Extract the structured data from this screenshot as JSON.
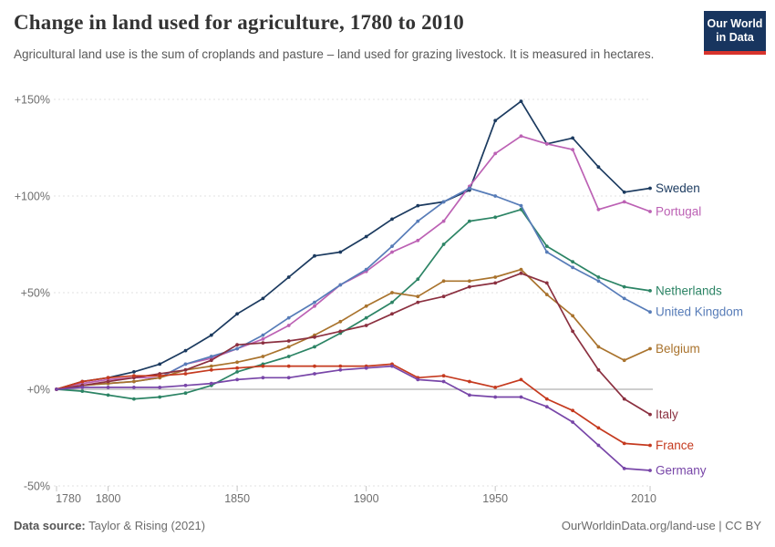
{
  "header": {
    "title": "Change in land used for agriculture, 1780 to 2010",
    "subtitle": "Agricultural land use is the sum of croplands and pasture – land used for grazing livestock. It is measured in hectares.",
    "logo": {
      "line1": "Our World",
      "line2": "in Data",
      "bg_color": "#18355F",
      "bar_color": "#D7332C"
    }
  },
  "chart_data": {
    "type": "line",
    "title": "Change in land used for agriculture, 1780 to 2010",
    "xlabel": "",
    "ylabel": "",
    "xlim": [
      1780,
      2010
    ],
    "ylim": [
      -50,
      150
    ],
    "grid": "horizontal-dashed",
    "legend_position": "line-end-labels-right",
    "x": [
      1780,
      1790,
      1800,
      1810,
      1820,
      1830,
      1840,
      1850,
      1860,
      1870,
      1880,
      1890,
      1900,
      1910,
      1920,
      1930,
      1940,
      1950,
      1960,
      1970,
      1980,
      1990,
      2000,
      2010
    ],
    "x_ticks": [
      1780,
      1800,
      1850,
      1900,
      1950,
      2010
    ],
    "y_ticks": [
      {
        "value": 150,
        "label": "+150%"
      },
      {
        "value": 100,
        "label": "+100%"
      },
      {
        "value": 50,
        "label": "+50%"
      },
      {
        "value": 0,
        "label": "+0%"
      },
      {
        "value": -50,
        "label": "-50%"
      }
    ],
    "unit": "%",
    "series": [
      {
        "name": "Sweden",
        "color": "#1B3A5F",
        "values": [
          0,
          4,
          6,
          9,
          13,
          20,
          28,
          39,
          47,
          58,
          69,
          71,
          79,
          88,
          95,
          97,
          103,
          139,
          149,
          127,
          130,
          115,
          102,
          104
        ]
      },
      {
        "name": "Portugal",
        "color": "#BC61B4",
        "values": [
          0,
          3,
          5,
          6,
          6,
          13,
          16,
          21,
          26,
          33,
          43,
          54,
          61,
          71,
          77,
          87,
          105,
          122,
          131,
          127,
          124,
          93,
          97,
          92
        ]
      },
      {
        "name": "Netherlands",
        "color": "#2C8465",
        "values": [
          0,
          -1,
          -3,
          -5,
          -4,
          -2,
          2,
          9,
          13,
          17,
          22,
          29,
          37,
          45,
          57,
          75,
          87,
          89,
          93,
          74,
          66,
          58,
          53,
          51
        ]
      },
      {
        "name": "United Kingdom",
        "color": "#577CB8",
        "values": [
          0,
          2,
          3,
          4,
          6,
          13,
          17,
          21,
          28,
          37,
          45,
          54,
          62,
          74,
          87,
          97,
          104,
          100,
          95,
          71,
          63,
          56,
          47,
          40
        ]
      },
      {
        "name": "Belgium",
        "color": "#A9732D",
        "values": [
          0,
          2,
          3,
          4,
          6,
          10,
          12,
          14,
          17,
          22,
          28,
          35,
          43,
          50,
          48,
          56,
          56,
          58,
          62,
          49,
          38,
          22,
          15,
          21
        ]
      },
      {
        "name": "Italy",
        "color": "#8B3040",
        "values": [
          0,
          2,
          4,
          6,
          8,
          10,
          15,
          23,
          24,
          25,
          27,
          30,
          33,
          39,
          45,
          48,
          53,
          55,
          60,
          55,
          30,
          10,
          -5,
          -13
        ]
      },
      {
        "name": "France",
        "color": "#C53A1F",
        "values": [
          0,
          4,
          6,
          7,
          7,
          8,
          10,
          11,
          12,
          12,
          12,
          12,
          12,
          13,
          6,
          7,
          4,
          1,
          5,
          -5,
          -11,
          -20,
          -28,
          -29
        ]
      },
      {
        "name": "Germany",
        "color": "#7846A8",
        "values": [
          0,
          1,
          1,
          1,
          1,
          2,
          3,
          5,
          6,
          6,
          8,
          10,
          11,
          12,
          5,
          4,
          -3,
          -4,
          -4,
          -9,
          -17,
          -29,
          -41,
          -42
        ]
      }
    ]
  },
  "footer": {
    "source_label": "Data source:",
    "source_value": "Taylor & Rising (2021)",
    "credit": "OurWorldinData.org/land-use | CC BY"
  }
}
